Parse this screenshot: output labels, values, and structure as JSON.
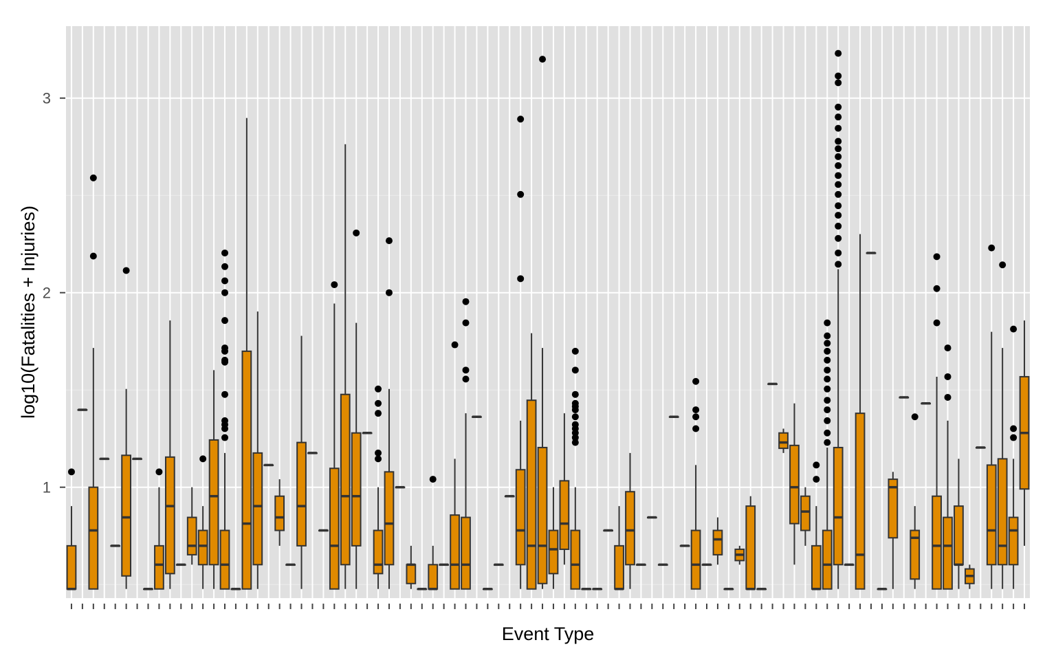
{
  "chart_data": {
    "type": "boxplot",
    "xlabel": "Event Type",
    "ylabel": "log10(Fatalities + Injuries)",
    "ylim": [
      0.43,
      3.37
    ],
    "yticks": [
      "1",
      "2",
      "3"
    ],
    "category_count": 88,
    "grid": "on",
    "legend": "none",
    "colors": {
      "panel": "#e0e0e0",
      "grid_major": "#ffffff",
      "grid_minor": "#ececec",
      "box_fill": "#e08a00",
      "box_line": "#333333",
      "outlier": "#000000",
      "axis_text": "#4d4d4d"
    },
    "boxes": [
      {
        "i": 1,
        "min": 0.477,
        "q1": 0.477,
        "med": 0.477,
        "q3": 0.699,
        "max": 0.903,
        "out": [
          1.079
        ]
      },
      {
        "i": 2,
        "min": 1.398,
        "q1": 1.398,
        "med": 1.398,
        "q3": 1.398,
        "max": 1.398,
        "out": []
      },
      {
        "i": 3,
        "min": 0.477,
        "q1": 0.477,
        "med": 0.778,
        "q3": 1.0,
        "max": 1.716,
        "out": [
          2.188,
          2.59
        ]
      },
      {
        "i": 4,
        "min": 1.146,
        "q1": 1.146,
        "med": 1.146,
        "q3": 1.146,
        "max": 1.146,
        "out": []
      },
      {
        "i": 5,
        "min": 0.699,
        "q1": 0.699,
        "med": 0.699,
        "q3": 0.699,
        "max": 0.699,
        "out": []
      },
      {
        "i": 6,
        "min": 0.477,
        "q1": 0.544,
        "med": 0.845,
        "q3": 1.164,
        "max": 1.505,
        "out": [
          2.114
        ]
      },
      {
        "i": 7,
        "min": 1.146,
        "q1": 1.146,
        "med": 1.146,
        "q3": 1.146,
        "max": 1.146,
        "out": []
      },
      {
        "i": 8,
        "min": 0.477,
        "q1": 0.477,
        "med": 0.477,
        "q3": 0.477,
        "max": 0.477,
        "out": []
      },
      {
        "i": 9,
        "min": 0.477,
        "q1": 0.477,
        "med": 0.602,
        "q3": 0.699,
        "max": 1.0,
        "out": [
          1.079
        ]
      },
      {
        "i": 10,
        "min": 0.477,
        "q1": 0.556,
        "med": 0.903,
        "q3": 1.155,
        "max": 1.857,
        "out": []
      },
      {
        "i": 11,
        "min": 0.602,
        "q1": 0.602,
        "med": 0.602,
        "q3": 0.602,
        "max": 0.602,
        "out": []
      },
      {
        "i": 12,
        "min": 0.602,
        "q1": 0.653,
        "med": 0.699,
        "q3": 0.845,
        "max": 1.0,
        "out": []
      },
      {
        "i": 13,
        "min": 0.477,
        "q1": 0.602,
        "med": 0.699,
        "q3": 0.778,
        "max": 0.903,
        "out": [
          1.146
        ]
      },
      {
        "i": 14,
        "min": 0.477,
        "q1": 0.602,
        "med": 0.954,
        "q3": 1.243,
        "max": 1.602,
        "out": []
      },
      {
        "i": 15,
        "min": 0.477,
        "q1": 0.477,
        "med": 0.602,
        "q3": 0.778,
        "max": 1.176,
        "out": [
          1.255,
          1.301,
          1.322,
          1.342,
          1.477,
          1.643,
          1.653,
          1.699,
          1.716,
          1.857,
          2.0,
          2.061,
          2.134,
          2.204
        ]
      },
      {
        "i": 16,
        "min": 0.477,
        "q1": 0.477,
        "med": 0.477,
        "q3": 0.477,
        "max": 0.477,
        "out": []
      },
      {
        "i": 17,
        "min": 0.477,
        "q1": 0.477,
        "med": 0.813,
        "q3": 1.699,
        "max": 2.898,
        "out": []
      },
      {
        "i": 18,
        "min": 0.477,
        "q1": 0.602,
        "med": 0.903,
        "q3": 1.176,
        "max": 1.903,
        "out": []
      },
      {
        "i": 19,
        "min": 1.114,
        "q1": 1.114,
        "med": 1.114,
        "q3": 1.114,
        "max": 1.114,
        "out": []
      },
      {
        "i": 20,
        "min": 0.699,
        "q1": 0.778,
        "med": 0.845,
        "q3": 0.954,
        "max": 1.041,
        "out": []
      },
      {
        "i": 21,
        "min": 0.602,
        "q1": 0.602,
        "med": 0.602,
        "q3": 0.602,
        "max": 0.602,
        "out": []
      },
      {
        "i": 22,
        "min": 0.477,
        "q1": 0.699,
        "med": 0.903,
        "q3": 1.23,
        "max": 1.778,
        "out": []
      },
      {
        "i": 23,
        "min": 1.176,
        "q1": 1.176,
        "med": 1.176,
        "q3": 1.176,
        "max": 1.176,
        "out": []
      },
      {
        "i": 24,
        "min": 0.778,
        "q1": 0.778,
        "med": 0.778,
        "q3": 0.778,
        "max": 0.778,
        "out": []
      },
      {
        "i": 25,
        "min": 0.477,
        "q1": 0.477,
        "med": 0.699,
        "q3": 1.097,
        "max": 1.944,
        "out": [
          2.041
        ]
      },
      {
        "i": 26,
        "min": 0.477,
        "q1": 0.602,
        "med": 0.954,
        "q3": 1.477,
        "max": 2.763,
        "out": []
      },
      {
        "i": 27,
        "min": 0.477,
        "q1": 0.699,
        "med": 0.954,
        "q3": 1.279,
        "max": 1.845,
        "out": [
          2.307
        ]
      },
      {
        "i": 28,
        "min": 1.279,
        "q1": 1.279,
        "med": 1.279,
        "q3": 1.279,
        "max": 1.279,
        "out": []
      },
      {
        "i": 29,
        "min": 0.477,
        "q1": 0.556,
        "med": 0.602,
        "q3": 0.778,
        "max": 1.0,
        "out": [
          1.146,
          1.176,
          1.38,
          1.431,
          1.505
        ]
      },
      {
        "i": 30,
        "min": 0.477,
        "q1": 0.602,
        "med": 0.813,
        "q3": 1.079,
        "max": 1.505,
        "out": [
          2.0,
          2.267
        ]
      },
      {
        "i": 31,
        "min": 1.0,
        "q1": 1.0,
        "med": 1.0,
        "q3": 1.0,
        "max": 1.0,
        "out": []
      },
      {
        "i": 32,
        "min": 0.477,
        "q1": 0.505,
        "med": 0.602,
        "q3": 0.602,
        "max": 0.699,
        "out": []
      },
      {
        "i": 33,
        "min": 0.477,
        "q1": 0.477,
        "med": 0.477,
        "q3": 0.477,
        "max": 0.477,
        "out": []
      },
      {
        "i": 34,
        "min": 0.477,
        "q1": 0.477,
        "med": 0.477,
        "q3": 0.602,
        "max": 0.699,
        "out": [
          1.041
        ]
      },
      {
        "i": 35,
        "min": 0.602,
        "q1": 0.602,
        "med": 0.602,
        "q3": 0.602,
        "max": 0.602,
        "out": []
      },
      {
        "i": 36,
        "min": 0.477,
        "q1": 0.477,
        "med": 0.602,
        "q3": 0.857,
        "max": 1.146,
        "out": [
          1.732
        ]
      },
      {
        "i": 37,
        "min": 0.477,
        "q1": 0.477,
        "med": 0.602,
        "q3": 0.845,
        "max": 1.38,
        "out": [
          1.556,
          1.602,
          1.845,
          1.954
        ]
      },
      {
        "i": 38,
        "min": 1.362,
        "q1": 1.362,
        "med": 1.362,
        "q3": 1.362,
        "max": 1.362,
        "out": []
      },
      {
        "i": 39,
        "min": 0.477,
        "q1": 0.477,
        "med": 0.477,
        "q3": 0.477,
        "max": 0.477,
        "out": []
      },
      {
        "i": 40,
        "min": 0.602,
        "q1": 0.602,
        "med": 0.602,
        "q3": 0.602,
        "max": 0.602,
        "out": []
      },
      {
        "i": 41,
        "min": 0.954,
        "q1": 0.954,
        "med": 0.954,
        "q3": 0.954,
        "max": 0.954,
        "out": []
      },
      {
        "i": 42,
        "min": 0.477,
        "q1": 0.602,
        "med": 0.778,
        "q3": 1.09,
        "max": 1.342,
        "out": [
          2.072,
          2.505,
          2.892
        ]
      },
      {
        "i": 43,
        "min": 0.477,
        "q1": 0.477,
        "med": 0.699,
        "q3": 1.447,
        "max": 1.792,
        "out": []
      },
      {
        "i": 44,
        "min": 0.477,
        "q1": 0.505,
        "med": 0.699,
        "q3": 1.204,
        "max": 1.716,
        "out": [
          3.2
        ]
      },
      {
        "i": 45,
        "min": 0.477,
        "q1": 0.556,
        "med": 0.681,
        "q3": 0.778,
        "max": 1.0,
        "out": []
      },
      {
        "i": 46,
        "min": 0.602,
        "q1": 0.681,
        "med": 0.813,
        "q3": 1.033,
        "max": 1.38,
        "out": []
      },
      {
        "i": 47,
        "min": 0.477,
        "q1": 0.477,
        "med": 0.602,
        "q3": 0.778,
        "max": 1.0,
        "out": [
          1.23,
          1.255,
          1.279,
          1.301,
          1.322,
          1.362,
          1.398,
          1.415,
          1.431,
          1.477,
          1.602,
          1.699
        ]
      },
      {
        "i": 48,
        "min": 0.477,
        "q1": 0.477,
        "med": 0.477,
        "q3": 0.477,
        "max": 0.477,
        "out": []
      },
      {
        "i": 49,
        "min": 0.477,
        "q1": 0.477,
        "med": 0.477,
        "q3": 0.477,
        "max": 0.477,
        "out": []
      },
      {
        "i": 50,
        "min": 0.778,
        "q1": 0.778,
        "med": 0.778,
        "q3": 0.778,
        "max": 0.778,
        "out": []
      },
      {
        "i": 51,
        "min": 0.477,
        "q1": 0.477,
        "med": 0.477,
        "q3": 0.699,
        "max": 0.903,
        "out": []
      },
      {
        "i": 52,
        "min": 0.477,
        "q1": 0.602,
        "med": 0.778,
        "q3": 0.977,
        "max": 1.176,
        "out": []
      },
      {
        "i": 53,
        "min": 0.602,
        "q1": 0.602,
        "med": 0.602,
        "q3": 0.602,
        "max": 0.602,
        "out": []
      },
      {
        "i": 54,
        "min": 0.845,
        "q1": 0.845,
        "med": 0.845,
        "q3": 0.845,
        "max": 0.845,
        "out": []
      },
      {
        "i": 55,
        "min": 0.602,
        "q1": 0.602,
        "med": 0.602,
        "q3": 0.602,
        "max": 0.602,
        "out": []
      },
      {
        "i": 56,
        "min": 1.362,
        "q1": 1.362,
        "med": 1.362,
        "q3": 1.362,
        "max": 1.362,
        "out": []
      },
      {
        "i": 57,
        "min": 0.699,
        "q1": 0.699,
        "med": 0.699,
        "q3": 0.699,
        "max": 0.699,
        "out": []
      },
      {
        "i": 58,
        "min": 0.477,
        "q1": 0.477,
        "med": 0.602,
        "q3": 0.778,
        "max": 1.114,
        "out": [
          1.301,
          1.362,
          1.398,
          1.544
        ]
      },
      {
        "i": 59,
        "min": 0.602,
        "q1": 0.602,
        "med": 0.602,
        "q3": 0.602,
        "max": 0.602,
        "out": []
      },
      {
        "i": 60,
        "min": 0.602,
        "q1": 0.653,
        "med": 0.732,
        "q3": 0.778,
        "max": 0.845,
        "out": []
      },
      {
        "i": 61,
        "min": 0.477,
        "q1": 0.477,
        "med": 0.477,
        "q3": 0.477,
        "max": 0.477,
        "out": []
      },
      {
        "i": 62,
        "min": 0.602,
        "q1": 0.623,
        "med": 0.653,
        "q3": 0.681,
        "max": 0.699,
        "out": []
      },
      {
        "i": 63,
        "min": 0.477,
        "q1": 0.477,
        "med": 0.477,
        "q3": 0.903,
        "max": 0.954,
        "out": []
      },
      {
        "i": 64,
        "min": 0.477,
        "q1": 0.477,
        "med": 0.477,
        "q3": 0.477,
        "max": 0.477,
        "out": []
      },
      {
        "i": 65,
        "min": 1.531,
        "q1": 1.531,
        "med": 1.531,
        "q3": 1.531,
        "max": 1.531,
        "out": []
      },
      {
        "i": 66,
        "min": 1.176,
        "q1": 1.2,
        "med": 1.23,
        "q3": 1.279,
        "max": 1.301,
        "out": []
      },
      {
        "i": 67,
        "min": 0.602,
        "q1": 0.813,
        "med": 1.0,
        "q3": 1.215,
        "max": 1.431,
        "out": []
      },
      {
        "i": 68,
        "min": 0.699,
        "q1": 0.778,
        "med": 0.875,
        "q3": 0.954,
        "max": 1.0,
        "out": []
      },
      {
        "i": 69,
        "min": 0.477,
        "q1": 0.477,
        "med": 0.477,
        "q3": 0.699,
        "max": 0.903,
        "out": [
          1.041,
          1.114
        ]
      },
      {
        "i": 70,
        "min": 0.477,
        "q1": 0.477,
        "med": 0.602,
        "q3": 0.778,
        "max": 1.204,
        "out": [
          1.23,
          1.279,
          1.342,
          1.398,
          1.447,
          1.505,
          1.556,
          1.602,
          1.653,
          1.699,
          1.74,
          1.778,
          1.845
        ]
      },
      {
        "i": 71,
        "min": 0.477,
        "q1": 0.602,
        "med": 0.845,
        "q3": 1.204,
        "max": 2.121,
        "out": [
          2.146,
          2.204,
          2.279,
          2.342,
          2.398,
          2.447,
          2.505,
          2.556,
          2.602,
          2.653,
          2.699,
          2.74,
          2.778,
          2.845,
          2.903,
          2.954,
          3.079,
          3.114,
          3.23
        ]
      },
      {
        "i": 72,
        "min": 0.602,
        "q1": 0.602,
        "med": 0.602,
        "q3": 0.602,
        "max": 0.602,
        "out": []
      },
      {
        "i": 73,
        "min": 0.477,
        "q1": 0.477,
        "med": 0.653,
        "q3": 1.38,
        "max": 2.301,
        "out": []
      },
      {
        "i": 74,
        "min": 2.204,
        "q1": 2.204,
        "med": 2.204,
        "q3": 2.204,
        "max": 2.204,
        "out": []
      },
      {
        "i": 75,
        "min": 0.477,
        "q1": 0.477,
        "med": 0.477,
        "q3": 0.477,
        "max": 0.477,
        "out": []
      },
      {
        "i": 76,
        "min": 0.477,
        "q1": 0.74,
        "med": 1.0,
        "q3": 1.041,
        "max": 1.079,
        "out": []
      },
      {
        "i": 77,
        "min": 1.462,
        "q1": 1.462,
        "med": 1.462,
        "q3": 1.462,
        "max": 1.462,
        "out": []
      },
      {
        "i": 78,
        "min": 0.477,
        "q1": 0.528,
        "med": 0.74,
        "q3": 0.778,
        "max": 0.903,
        "out": [
          1.362
        ]
      },
      {
        "i": 79,
        "min": 1.431,
        "q1": 1.431,
        "med": 1.431,
        "q3": 1.431,
        "max": 1.431,
        "out": []
      },
      {
        "i": 80,
        "min": 0.477,
        "q1": 0.477,
        "med": 0.699,
        "q3": 0.954,
        "max": 1.568,
        "out": [
          1.845,
          2.021,
          2.185
        ]
      },
      {
        "i": 81,
        "min": 0.477,
        "q1": 0.477,
        "med": 0.699,
        "q3": 0.845,
        "max": 1.342,
        "out": [
          1.462,
          1.568,
          1.716
        ]
      },
      {
        "i": 82,
        "min": 0.477,
        "q1": 0.602,
        "med": 0.602,
        "q3": 0.903,
        "max": 1.146,
        "out": []
      },
      {
        "i": 83,
        "min": 0.477,
        "q1": 0.505,
        "med": 0.544,
        "q3": 0.58,
        "max": 0.602,
        "out": []
      },
      {
        "i": 84,
        "min": 1.204,
        "q1": 1.204,
        "med": 1.204,
        "q3": 1.204,
        "max": 1.204,
        "out": []
      },
      {
        "i": 85,
        "min": 0.477,
        "q1": 0.602,
        "med": 0.778,
        "q3": 1.114,
        "max": 1.799,
        "out": [
          2.23
        ]
      },
      {
        "i": 86,
        "min": 0.477,
        "q1": 0.602,
        "med": 0.699,
        "q3": 1.146,
        "max": 1.716,
        "out": [
          2.143
        ]
      },
      {
        "i": 87,
        "min": 0.477,
        "q1": 0.602,
        "med": 0.778,
        "q3": 0.845,
        "max": 1.146,
        "out": [
          1.255,
          1.301,
          1.813
        ]
      },
      {
        "i": 88,
        "min": 0.699,
        "q1": 0.991,
        "med": 1.279,
        "q3": 1.568,
        "max": 1.857,
        "out": []
      }
    ]
  }
}
